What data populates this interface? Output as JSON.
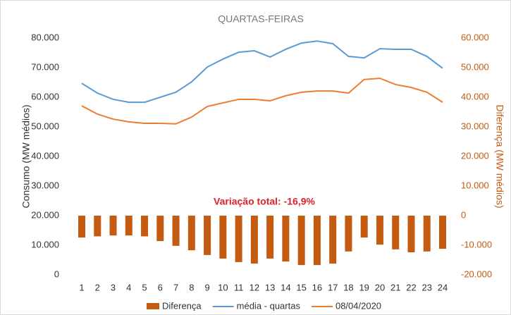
{
  "chart_data": {
    "type": "bar-line",
    "title": "QUARTAS-FEIRAS",
    "y_label": "Consumo (MW médios)",
    "y2_label": "Diferença (MW médios)",
    "annotation": "Variação total: -16,9%",
    "categories": [
      "1",
      "2",
      "3",
      "4",
      "5",
      "6",
      "7",
      "8",
      "9",
      "10",
      "11",
      "12",
      "13",
      "14",
      "15",
      "16",
      "17",
      "18",
      "19",
      "20",
      "21",
      "22",
      "23",
      "24"
    ],
    "series": [
      {
        "name": "Diferença",
        "kind": "bar",
        "axis": "y2",
        "color": "#c55a11",
        "values": [
          -7400,
          -7000,
          -6700,
          -6700,
          -7000,
          -8600,
          -10200,
          -11700,
          -13300,
          -14500,
          -15700,
          -16200,
          -14500,
          -15500,
          -16700,
          -16700,
          -16200,
          -12100,
          -7400,
          -9800,
          -11400,
          -12400,
          -12100,
          -11200
        ]
      },
      {
        "name": "média - quartas",
        "kind": "line",
        "color": "#5b9bd5",
        "values": [
          64700,
          61400,
          59300,
          58300,
          58300,
          60000,
          61700,
          65200,
          70200,
          72900,
          75200,
          75700,
          73600,
          76200,
          78300,
          79000,
          78100,
          73800,
          73300,
          76400,
          76200,
          76200,
          73800,
          69800
        ]
      },
      {
        "name": "08/04/2020",
        "kind": "line",
        "color": "#ed7d31",
        "values": [
          57100,
          54300,
          52600,
          51700,
          51200,
          51200,
          51000,
          53300,
          56900,
          58100,
          59300,
          59300,
          58800,
          60500,
          61700,
          62100,
          62100,
          61400,
          66000,
          66400,
          64300,
          63300,
          61700,
          58300
        ]
      }
    ],
    "ylim": [
      0,
      80000
    ],
    "yticks": [
      0,
      {
        "value": 10000,
        "label": "10.000"
      },
      {
        "value": 20000,
        "label": "20.000"
      },
      {
        "value": 30000,
        "label": "30.000"
      },
      {
        "value": 40000,
        "label": "40.000"
      },
      {
        "value": 50000,
        "label": "50.000"
      },
      {
        "value": 60000,
        "label": "60.000"
      },
      {
        "value": 70000,
        "label": "70.000"
      },
      {
        "value": 80000,
        "label": "80.000"
      }
    ],
    "y2lim": [
      -20000,
      60000
    ],
    "y2ticks": [
      {
        "value": -20000,
        "label": "-20.000"
      },
      {
        "value": -10000,
        "label": "-10.000"
      },
      0,
      {
        "value": 10000,
        "label": "10.000"
      },
      {
        "value": 20000,
        "label": "20.000"
      },
      {
        "value": 30000,
        "label": "30.000"
      },
      {
        "value": 40000,
        "label": "40.000"
      },
      {
        "value": 50000,
        "label": "50.000"
      },
      {
        "value": 60000,
        "label": "60.000"
      }
    ],
    "y2_color": "#c55a11",
    "annotation_color": "#e0202a",
    "grid": false,
    "legend": "bottom"
  }
}
